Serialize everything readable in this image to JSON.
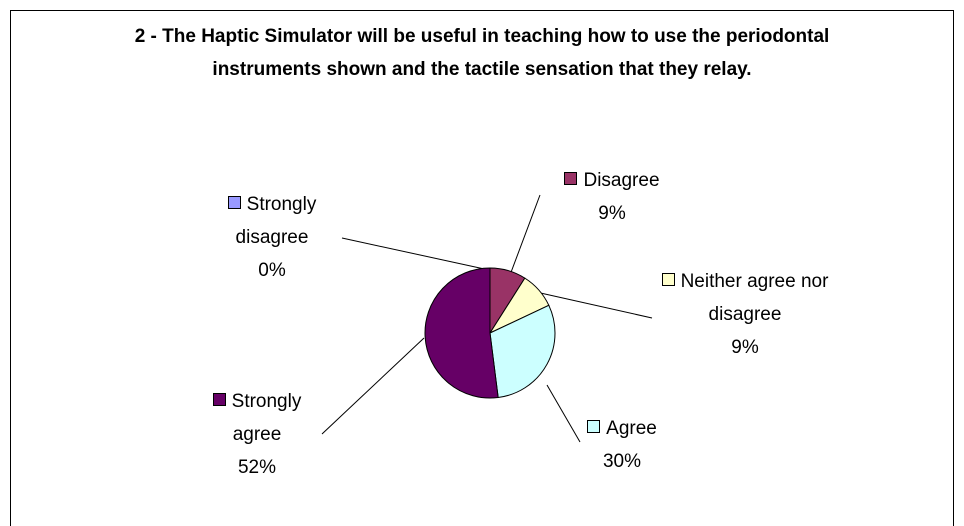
{
  "chart_data": {
    "type": "pie",
    "title": "2 - The Haptic Simulator will be useful in teaching how to use the periodontal instruments shown and the tactile sensation that they relay.",
    "categories": [
      "Strongly disagree",
      "Disagree",
      "Neither agree nor disagree",
      "Agree",
      "Strongly agree"
    ],
    "values": [
      0,
      9,
      9,
      30,
      52
    ],
    "value_labels": [
      "0%",
      "9%",
      "9%",
      "30%",
      "52%"
    ],
    "colors": [
      "#9999ff",
      "#993366",
      "#ffffcc",
      "#ccffff",
      "#660066"
    ]
  }
}
